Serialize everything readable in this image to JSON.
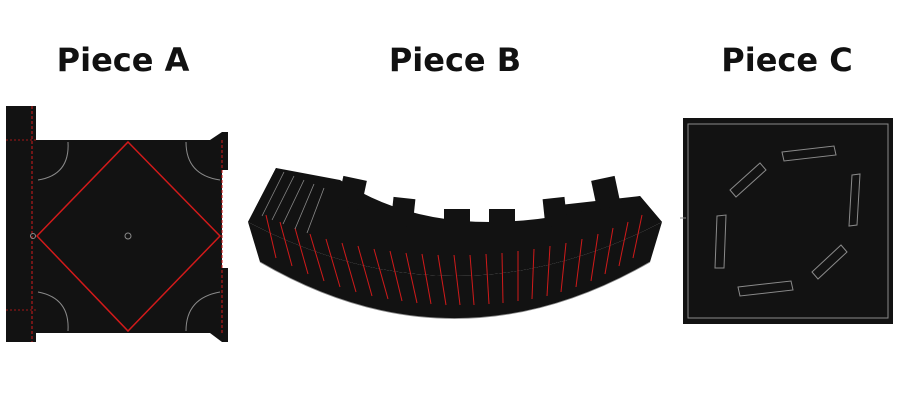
{
  "pieces": [
    {
      "id": "A",
      "label": "Piece A"
    },
    {
      "id": "B",
      "label": "Piece B"
    },
    {
      "id": "C",
      "label": "Piece C"
    }
  ],
  "colors": {
    "background": "#ffffff",
    "piece_fill": "#121212",
    "fold_line": "#d11a1a",
    "cut_line": "#8a8a8a",
    "label_text": "#111111"
  }
}
